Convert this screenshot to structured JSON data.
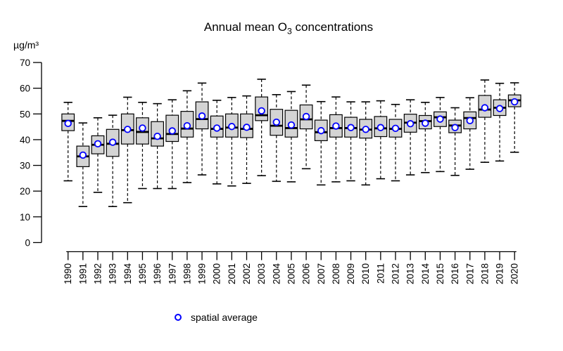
{
  "title": {
    "prefix": "Annual mean O",
    "subscript": "3",
    "suffix": " concentrations"
  },
  "y_axis_unit": "µg/m³",
  "legend": {
    "marker": "open-circle-icon",
    "label": "spatial average",
    "marker_color": "#0000ff"
  },
  "colors": {
    "box_fill": "#d4d4d4",
    "box_border": "#000000",
    "median": "#000000",
    "whisker": "#000000",
    "mean_stroke": "#0000ff",
    "mean_fill": "#ffffff",
    "axis": "#000000"
  },
  "chart_data": {
    "type": "boxplot",
    "title": "Annual mean O3 concentrations",
    "ylabel": "µg/m³",
    "ylim": [
      0,
      70
    ],
    "y_ticks": [
      0,
      10,
      20,
      30,
      40,
      50,
      60,
      70
    ],
    "grid": false,
    "legend_position": "bottom",
    "mean_marker": "open blue circle (spatial average)",
    "categories": [
      "1990",
      "1991",
      "1992",
      "1993",
      "1994",
      "1995",
      "1996",
      "1997",
      "1998",
      "1999",
      "2000",
      "2001",
      "2002",
      "2003",
      "2004",
      "2005",
      "2006",
      "2007",
      "2008",
      "2009",
      "2010",
      "2011",
      "2012",
      "2013",
      "2014",
      "2015",
      "2016",
      "2017",
      "2018",
      "2019",
      "2020"
    ],
    "series": [
      {
        "year": "1990",
        "low": 24.0,
        "q1": 43.5,
        "median": 47.3,
        "q3": 50.0,
        "high": 54.5,
        "mean": 46.3
      },
      {
        "year": "1991",
        "low": 14.0,
        "q1": 29.5,
        "median": 33.5,
        "q3": 37.5,
        "high": 46.5,
        "mean": 34.0
      },
      {
        "year": "1992",
        "low": 19.5,
        "q1": 34.5,
        "median": 38.0,
        "q3": 41.5,
        "high": 48.5,
        "mean": 38.4
      },
      {
        "year": "1993",
        "low": 14.0,
        "q1": 33.5,
        "median": 38.4,
        "q3": 44.0,
        "high": 49.5,
        "mean": 39.0
      },
      {
        "year": "1994",
        "low": 15.5,
        "q1": 38.3,
        "median": 43.7,
        "q3": 50.0,
        "high": 56.5,
        "mean": 44.0
      },
      {
        "year": "1995",
        "low": 21.0,
        "q1": 38.3,
        "median": 43.0,
        "q3": 48.5,
        "high": 54.5,
        "mean": 44.5
      },
      {
        "year": "1996",
        "low": 21.0,
        "q1": 37.5,
        "median": 40.5,
        "q3": 47.0,
        "high": 54.0,
        "mean": 41.3
      },
      {
        "year": "1997",
        "low": 21.0,
        "q1": 39.3,
        "median": 42.2,
        "q3": 49.5,
        "high": 55.5,
        "mean": 43.4
      },
      {
        "year": "1998",
        "low": 23.3,
        "q1": 41.0,
        "median": 44.3,
        "q3": 51.0,
        "high": 59.0,
        "mean": 45.4
      },
      {
        "year": "1999",
        "low": 26.3,
        "q1": 44.2,
        "median": 48.0,
        "q3": 54.7,
        "high": 62.0,
        "mean": 49.2
      },
      {
        "year": "2000",
        "low": 22.8,
        "q1": 41.0,
        "median": 44.2,
        "q3": 49.2,
        "high": 55.3,
        "mean": 44.5
      },
      {
        "year": "2001",
        "low": 22.0,
        "q1": 41.0,
        "median": 44.7,
        "q3": 50.0,
        "high": 56.4,
        "mean": 45.1
      },
      {
        "year": "2002",
        "low": 23.0,
        "q1": 40.8,
        "median": 44.2,
        "q3": 50.0,
        "high": 57.0,
        "mean": 44.8
      },
      {
        "year": "2003",
        "low": 26.0,
        "q1": 47.4,
        "median": 49.5,
        "q3": 56.6,
        "high": 63.5,
        "mean": 51.2
      },
      {
        "year": "2004",
        "low": 23.8,
        "q1": 41.7,
        "median": 45.4,
        "q3": 51.8,
        "high": 57.5,
        "mean": 46.8
      },
      {
        "year": "2005",
        "low": 23.6,
        "q1": 41.0,
        "median": 44.5,
        "q3": 51.4,
        "high": 58.7,
        "mean": 45.7
      },
      {
        "year": "2006",
        "low": 28.7,
        "q1": 44.2,
        "median": 47.9,
        "q3": 53.5,
        "high": 61.2,
        "mean": 49.0
      },
      {
        "year": "2007",
        "low": 22.4,
        "q1": 39.6,
        "median": 42.9,
        "q3": 47.6,
        "high": 54.8,
        "mean": 43.5
      },
      {
        "year": "2008",
        "low": 23.6,
        "q1": 41.0,
        "median": 44.5,
        "q3": 49.7,
        "high": 56.6,
        "mean": 45.3
      },
      {
        "year": "2009",
        "low": 24.0,
        "q1": 41.0,
        "median": 44.5,
        "q3": 48.7,
        "high": 54.7,
        "mean": 44.7
      },
      {
        "year": "2010",
        "low": 22.4,
        "q1": 40.6,
        "median": 43.9,
        "q3": 47.9,
        "high": 54.7,
        "mean": 44.0
      },
      {
        "year": "2011",
        "low": 24.8,
        "q1": 41.2,
        "median": 44.4,
        "q3": 49.0,
        "high": 55.1,
        "mean": 44.7
      },
      {
        "year": "2012",
        "low": 24.0,
        "q1": 41.0,
        "median": 44.2,
        "q3": 47.9,
        "high": 53.7,
        "mean": 44.4
      },
      {
        "year": "2013",
        "low": 26.3,
        "q1": 42.9,
        "median": 46.6,
        "q3": 49.9,
        "high": 55.5,
        "mean": 46.2
      },
      {
        "year": "2014",
        "low": 27.2,
        "q1": 44.2,
        "median": 47.2,
        "q3": 49.4,
        "high": 54.5,
        "mean": 46.4
      },
      {
        "year": "2015",
        "low": 27.6,
        "q1": 45.1,
        "median": 48.7,
        "q3": 50.8,
        "high": 56.4,
        "mean": 48.0
      },
      {
        "year": "2016",
        "low": 26.1,
        "q1": 42.7,
        "median": 45.5,
        "q3": 47.6,
        "high": 52.4,
        "mean": 44.7
      },
      {
        "year": "2017",
        "low": 28.5,
        "q1": 44.2,
        "median": 48.4,
        "q3": 50.8,
        "high": 56.3,
        "mean": 47.4
      },
      {
        "year": "2018",
        "low": 31.2,
        "q1": 48.7,
        "median": 51.7,
        "q3": 57.2,
        "high": 63.2,
        "mean": 52.4
      },
      {
        "year": "2019",
        "low": 31.7,
        "q1": 49.4,
        "median": 52.4,
        "q3": 55.5,
        "high": 61.9,
        "mean": 52.1
      },
      {
        "year": "2020",
        "low": 35.1,
        "q1": 52.8,
        "median": 55.3,
        "q3": 57.4,
        "high": 62.1,
        "mean": 54.7
      }
    ]
  }
}
